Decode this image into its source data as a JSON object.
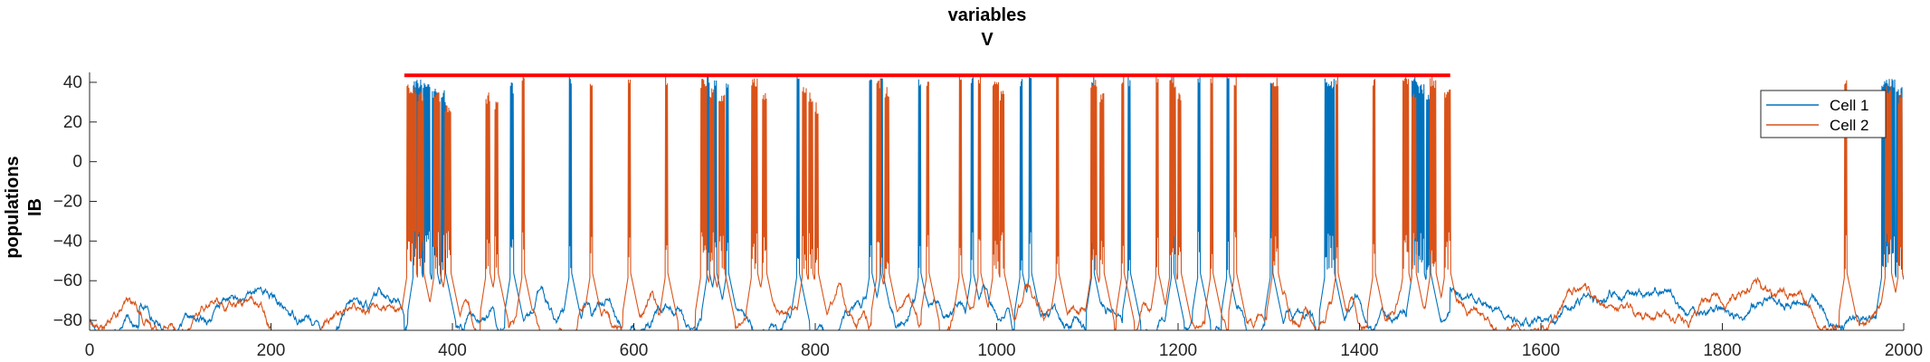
{
  "chart_data": {
    "type": "line",
    "title_line1": "variables",
    "title_line2": "V",
    "ylabel_line1": "populations",
    "ylabel_line2": "IB",
    "xlim": [
      0,
      2000
    ],
    "ylim": [
      -85,
      45
    ],
    "xticks": [
      0,
      200,
      400,
      600,
      800,
      1000,
      1200,
      1400,
      1600,
      1800,
      2000
    ],
    "yticks": [
      -80,
      -60,
      -40,
      -20,
      0,
      20,
      40
    ],
    "grid": false,
    "legend_position": "top-right",
    "stimulus_bar": {
      "x": [
        347,
        1500
      ],
      "y": 43.5,
      "color": "#ff0000"
    },
    "series": [
      {
        "name": "Cell 1",
        "color": "#0072bd",
        "baseline": -76,
        "bursts": [
          [
            357,
            366,
            43
          ],
          [
            368,
            375,
            40
          ],
          [
            378,
            383,
            38
          ],
          [
            388,
            392,
            36
          ],
          [
            464,
            467,
            40
          ],
          [
            529,
            531,
            44
          ],
          [
            681,
            683,
            44
          ],
          [
            689,
            691,
            44
          ],
          [
            702,
            704,
            42
          ],
          [
            780,
            782,
            44
          ],
          [
            860,
            862,
            44
          ],
          [
            872,
            874,
            44
          ],
          [
            914,
            916,
            44
          ],
          [
            972,
            974,
            44
          ],
          [
            1026,
            1028,
            44
          ],
          [
            1036,
            1038,
            44
          ],
          [
            1105,
            1107,
            44
          ],
          [
            1145,
            1147,
            44
          ],
          [
            1193,
            1195,
            44
          ],
          [
            1222,
            1224,
            44
          ],
          [
            1254,
            1256,
            44
          ],
          [
            1302,
            1304,
            44
          ],
          [
            1362,
            1372,
            42
          ],
          [
            1458,
            1464,
            44
          ],
          [
            1465,
            1471,
            40
          ],
          [
            1474,
            1478,
            36
          ],
          [
            1976,
            1990,
            43
          ],
          [
            1992,
            1998,
            38
          ]
        ]
      },
      {
        "name": "Cell 2",
        "color": "#d95319",
        "baseline": -77,
        "bursts": [
          [
            350,
            360,
            40
          ],
          [
            362,
            368,
            36
          ],
          [
            380,
            386,
            35
          ],
          [
            392,
            398,
            30
          ],
          [
            437,
            441,
            35
          ],
          [
            447,
            450,
            32
          ],
          [
            477,
            479,
            44
          ],
          [
            552,
            554,
            44
          ],
          [
            594,
            596,
            44
          ],
          [
            635,
            637,
            44
          ],
          [
            674,
            680,
            43
          ],
          [
            684,
            688,
            38
          ],
          [
            694,
            700,
            35
          ],
          [
            730,
            736,
            43
          ],
          [
            742,
            746,
            35
          ],
          [
            786,
            790,
            40
          ],
          [
            793,
            797,
            35
          ],
          [
            800,
            803,
            30
          ],
          [
            868,
            872,
            43
          ],
          [
            877,
            881,
            38
          ],
          [
            923,
            925,
            44
          ],
          [
            959,
            961,
            44
          ],
          [
            980,
            982,
            44
          ],
          [
            996,
            1002,
            43
          ],
          [
            1004,
            1008,
            36
          ],
          [
            1066,
            1068,
            44
          ],
          [
            1104,
            1110,
            43
          ],
          [
            1114,
            1118,
            36
          ],
          [
            1138,
            1140,
            44
          ],
          [
            1176,
            1178,
            44
          ],
          [
            1191,
            1197,
            43
          ],
          [
            1200,
            1203,
            35
          ],
          [
            1236,
            1238,
            44
          ],
          [
            1262,
            1264,
            44
          ],
          [
            1304,
            1310,
            43
          ],
          [
            1374,
            1376,
            44
          ],
          [
            1415,
            1417,
            44
          ],
          [
            1448,
            1454,
            43
          ],
          [
            1458,
            1462,
            38
          ],
          [
            1478,
            1484,
            43
          ],
          [
            1494,
            1500,
            38
          ],
          [
            1935,
            1937,
            44
          ],
          [
            1980,
            1986,
            40
          ],
          [
            1994,
            1998,
            35
          ]
        ]
      }
    ]
  }
}
